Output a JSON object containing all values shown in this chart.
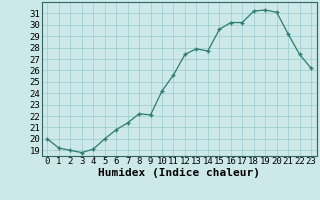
{
  "x": [
    0,
    1,
    2,
    3,
    4,
    5,
    6,
    7,
    8,
    9,
    10,
    11,
    12,
    13,
    14,
    15,
    16,
    17,
    18,
    19,
    20,
    21,
    22,
    23
  ],
  "y": [
    20.0,
    19.2,
    19.0,
    18.8,
    19.1,
    20.0,
    20.8,
    21.4,
    22.2,
    22.1,
    24.2,
    25.6,
    27.4,
    27.9,
    27.7,
    29.6,
    30.2,
    30.2,
    31.2,
    31.3,
    31.1,
    29.2,
    27.4,
    26.2
  ],
  "xlabel": "Humidex (Indice chaleur)",
  "ylim": [
    18.5,
    32.0
  ],
  "xlim": [
    -0.5,
    23.5
  ],
  "yticks": [
    19,
    20,
    21,
    22,
    23,
    24,
    25,
    26,
    27,
    28,
    29,
    30,
    31
  ],
  "xticks": [
    0,
    1,
    2,
    3,
    4,
    5,
    6,
    7,
    8,
    9,
    10,
    11,
    12,
    13,
    14,
    15,
    16,
    17,
    18,
    19,
    20,
    21,
    22,
    23
  ],
  "line_color": "#2d7d6d",
  "bg_color": "#cce8e8",
  "grid_color": "#99cccc",
  "xlabel_fontsize": 8,
  "tick_fontsize": 6.5,
  "marker": "+"
}
